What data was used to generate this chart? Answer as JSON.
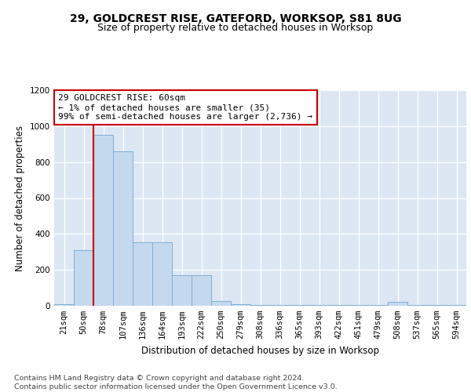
{
  "title1": "29, GOLDCREST RISE, GATEFORD, WORKSOP, S81 8UG",
  "title2": "Size of property relative to detached houses in Worksop",
  "xlabel": "Distribution of detached houses by size in Worksop",
  "ylabel": "Number of detached properties",
  "categories": [
    "21sqm",
    "50sqm",
    "78sqm",
    "107sqm",
    "136sqm",
    "164sqm",
    "193sqm",
    "222sqm",
    "250sqm",
    "279sqm",
    "308sqm",
    "336sqm",
    "365sqm",
    "393sqm",
    "422sqm",
    "451sqm",
    "479sqm",
    "508sqm",
    "537sqm",
    "565sqm",
    "594sqm"
  ],
  "values": [
    10,
    310,
    950,
    860,
    355,
    355,
    170,
    170,
    25,
    10,
    5,
    5,
    5,
    5,
    5,
    5,
    5,
    20,
    5,
    5,
    5
  ],
  "bar_color": "#c5d9ee",
  "bar_edge_color": "#7bafd4",
  "annotation_text": "29 GOLDCREST RISE: 60sqm\n← 1% of detached houses are smaller (35)\n99% of semi-detached houses are larger (2,736) →",
  "annotation_box_color": "#ffffff",
  "annotation_box_edge_color": "#cc0000",
  "annotation_line_color": "#cc0000",
  "ylim": [
    0,
    1200
  ],
  "yticks": [
    0,
    200,
    400,
    600,
    800,
    1000,
    1200
  ],
  "background_color": "#dce7f3",
  "footer_text": "Contains HM Land Registry data © Crown copyright and database right 2024.\nContains public sector information licensed under the Open Government Licence v3.0.",
  "title_fontsize": 10,
  "subtitle_fontsize": 9,
  "axis_label_fontsize": 8.5,
  "tick_fontsize": 7.5,
  "annotation_fontsize": 8,
  "footer_fontsize": 6.8
}
